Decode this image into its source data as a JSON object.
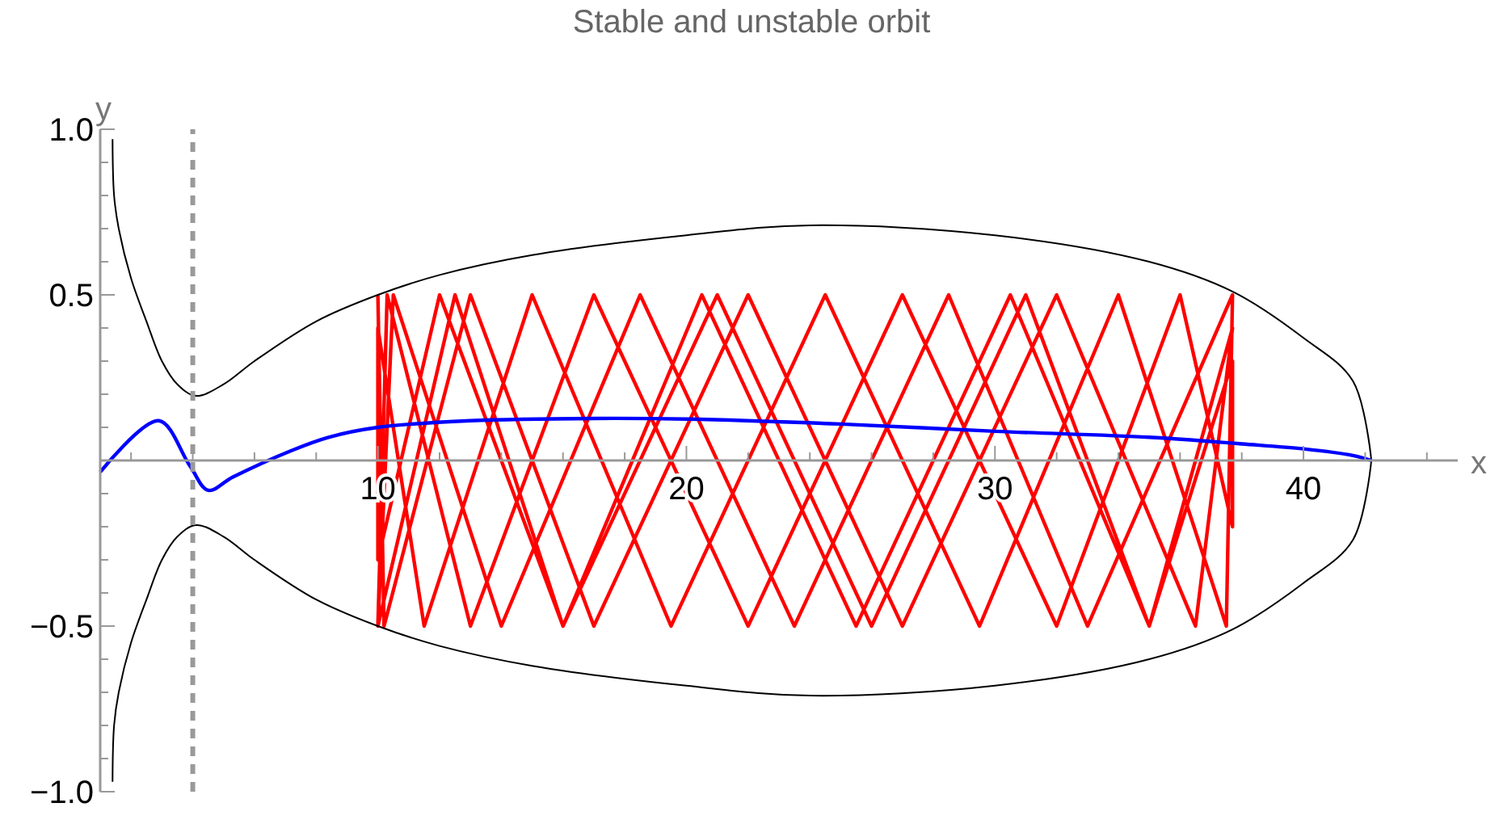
{
  "chart_data": {
    "type": "line",
    "title": "Stable and unstable orbit",
    "xlabel": "x",
    "ylabel": "y",
    "xlim": [
      1,
      45
    ],
    "ylim": [
      -1,
      1
    ],
    "xticks": [
      {
        "value": 2,
        "label": null
      },
      {
        "value": 4,
        "label": null
      },
      {
        "value": 6,
        "label": null
      },
      {
        "value": 8,
        "label": null
      },
      10,
      {
        "value": 12,
        "label": null
      },
      {
        "value": 14,
        "label": null
      },
      {
        "value": 16,
        "label": null
      },
      {
        "value": 18,
        "label": null
      },
      20,
      {
        "value": 22,
        "label": null
      },
      {
        "value": 24,
        "label": null
      },
      {
        "value": 26,
        "label": null
      },
      {
        "value": 28,
        "label": null
      },
      30,
      {
        "value": 32,
        "label": null
      },
      {
        "value": 34,
        "label": null
      },
      {
        "value": 36,
        "label": null
      },
      {
        "value": 38,
        "label": null
      },
      40,
      {
        "value": 42,
        "label": null
      },
      {
        "value": 44,
        "label": null
      }
    ],
    "yticks": [
      {
        "value": -1,
        "label": "−1.0"
      },
      {
        "value": -0.9,
        "label": null
      },
      {
        "value": -0.8,
        "label": null
      },
      {
        "value": -0.7,
        "label": null
      },
      {
        "value": -0.6,
        "label": null
      },
      {
        "value": -0.5,
        "label": "−0.5"
      },
      {
        "value": -0.4,
        "label": null
      },
      {
        "value": -0.3,
        "label": null
      },
      {
        "value": -0.2,
        "label": null
      },
      {
        "value": -0.1,
        "label": null
      },
      {
        "value": 0.1,
        "label": null
      },
      {
        "value": 0.2,
        "label": null
      },
      {
        "value": 0.3,
        "label": null
      },
      {
        "value": 0.4,
        "label": null
      },
      {
        "value": 0.5,
        "label": "0.5"
      },
      {
        "value": 0.6,
        "label": null
      },
      {
        "value": 0.7,
        "label": null
      },
      {
        "value": 0.8,
        "label": null
      },
      {
        "value": 0.9,
        "label": null
      },
      {
        "value": 1,
        "label": "1.0"
      }
    ],
    "grid": false,
    "line_style": "solid",
    "ref_lines": [
      {
        "axis": "x",
        "value": 4,
        "color": "#999999",
        "line_style": "dashed"
      }
    ],
    "series": [
      {
        "color": "#ff0000",
        "x": [
          10,
          10.3,
          13,
          17,
          22,
          27,
          32,
          36,
          37.7,
          37.7,
          35,
          31,
          26,
          21,
          16,
          12,
          10,
          10,
          11.5,
          15,
          19.5,
          24.5,
          29.5,
          34,
          37.5,
          37.7,
          33,
          28.5,
          23.5,
          18.5,
          14,
          10.5,
          10,
          12.5,
          16,
          20.5,
          25.5,
          30.5,
          35,
          37.7,
          36.5,
          32,
          27,
          22,
          17,
          13,
          10.2,
          10
        ],
        "values": [
          -0.5,
          0.5,
          -0.5,
          0.5,
          -0.5,
          0.5,
          -0.5,
          0.5,
          -0.2,
          0.3,
          -0.5,
          0.5,
          -0.5,
          0.5,
          -0.5,
          0.5,
          -0.3,
          0.4,
          -0.5,
          0.5,
          -0.5,
          0.5,
          -0.5,
          0.5,
          -0.5,
          0.5,
          -0.5,
          0.5,
          -0.5,
          0.5,
          -0.5,
          0.5,
          -0.5,
          0.5,
          -0.5,
          0.5,
          -0.5,
          0.5,
          -0.5,
          0.4,
          -0.5,
          0.5,
          -0.5,
          0.5,
          -0.5,
          0.5,
          -0.5,
          0.5
        ]
      },
      {
        "color": "#000000",
        "x": [
          1.4,
          1.45,
          1.6,
          2,
          2.5,
          3,
          3.5,
          4.1,
          5,
          6,
          8,
          10,
          12,
          15,
          20,
          24,
          30,
          35,
          37.7,
          40,
          41.6,
          42.2
        ],
        "values": [
          0.97,
          0.8,
          0.7,
          0.55,
          0.42,
          0.3,
          0.23,
          0.195,
          0.23,
          0.3,
          0.42,
          0.5,
          0.56,
          0.62,
          0.68,
          0.71,
          0.68,
          0.6,
          0.51,
          0.37,
          0.24,
          0
        ]
      },
      {
        "color": "#000000",
        "x": [
          1.4,
          1.45,
          1.6,
          2,
          2.5,
          3,
          3.5,
          4.1,
          5,
          6,
          8,
          10,
          12,
          15,
          20,
          24,
          30,
          35,
          37.7,
          40,
          41.6,
          42.2
        ],
        "values": [
          -0.97,
          -0.8,
          -0.7,
          -0.55,
          -0.42,
          -0.3,
          -0.23,
          -0.195,
          -0.23,
          -0.3,
          -0.42,
          -0.5,
          -0.56,
          -0.62,
          -0.68,
          -0.71,
          -0.68,
          -0.6,
          -0.51,
          -0.37,
          -0.24,
          0
        ]
      },
      {
        "color": "#0000ff",
        "x": [
          1,
          2.9,
          3.9,
          4.5,
          5.3,
          7.2,
          8.4,
          10,
          13,
          17,
          20,
          25,
          30,
          35,
          38,
          40,
          41.6,
          42.2
        ],
        "values": [
          -0.035,
          0.12,
          -0.015,
          -0.09,
          -0.05,
          0.03,
          0.07,
          0.1,
          0.12,
          0.127,
          0.125,
          0.11,
          0.088,
          0.07,
          0.05,
          0.035,
          0.015,
          0
        ]
      }
    ]
  }
}
